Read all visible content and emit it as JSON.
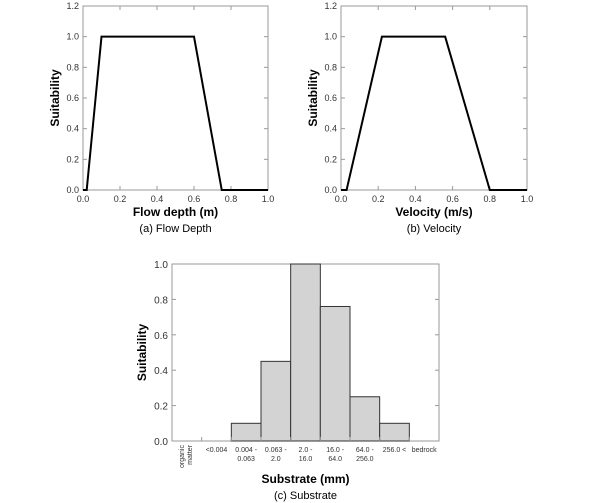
{
  "chart_data": [
    {
      "type": "line",
      "title": "(a)  Flow Depth",
      "xlabel": "Flow depth (m)",
      "ylabel": "Suitability",
      "xlim": [
        0,
        1
      ],
      "ylim": [
        0,
        1.2
      ],
      "xticks": [
        "0.0",
        "0.2",
        "0.4",
        "0.6",
        "0.8",
        "1.0"
      ],
      "yticks": [
        "0.0",
        "0.2",
        "0.4",
        "0.6",
        "0.8",
        "1.0",
        "1.2"
      ],
      "x": [
        0,
        0.02,
        0.1,
        0.6,
        0.75,
        1.0
      ],
      "y": [
        0,
        0,
        1,
        1,
        0,
        0
      ]
    },
    {
      "type": "line",
      "title": "(b)  Velocity",
      "xlabel": "Velocity (m/s)",
      "ylabel": "Suitability",
      "xlim": [
        0,
        1
      ],
      "ylim": [
        0,
        1.2
      ],
      "xticks": [
        "0.0",
        "0.2",
        "0.4",
        "0.6",
        "0.8",
        "1.0"
      ],
      "yticks": [
        "0.0",
        "0.2",
        "0.4",
        "0.6",
        "0.8",
        "1.0",
        "1.2"
      ],
      "x": [
        0,
        0.03,
        0.22,
        0.56,
        0.8,
        1.0
      ],
      "y": [
        0,
        0,
        1,
        1,
        0,
        0
      ]
    },
    {
      "type": "bar",
      "title": "(c)  Substrate",
      "xlabel": "Substrate (mm)",
      "ylabel": "Suitability",
      "ylim": [
        0,
        1.0
      ],
      "yticks": [
        "0.0",
        "0.2",
        "0.4",
        "0.6",
        "0.8",
        "1.0"
      ],
      "categories": [
        [
          "organic",
          "matter"
        ],
        [
          "<0.004"
        ],
        [
          "0.004 -",
          "0.063"
        ],
        [
          "0.063 -",
          "2.0"
        ],
        [
          "2.0 -",
          "16.0"
        ],
        [
          "16.0 -",
          "64.0"
        ],
        [
          "64.0 -",
          "256.0"
        ],
        [
          "256.0 <"
        ],
        [
          "bedrock"
        ]
      ],
      "values": [
        0,
        0,
        0.1,
        0.45,
        1.0,
        0.76,
        0.25,
        0.1,
        0
      ],
      "bar_color": "#d3d3d3"
    }
  ]
}
